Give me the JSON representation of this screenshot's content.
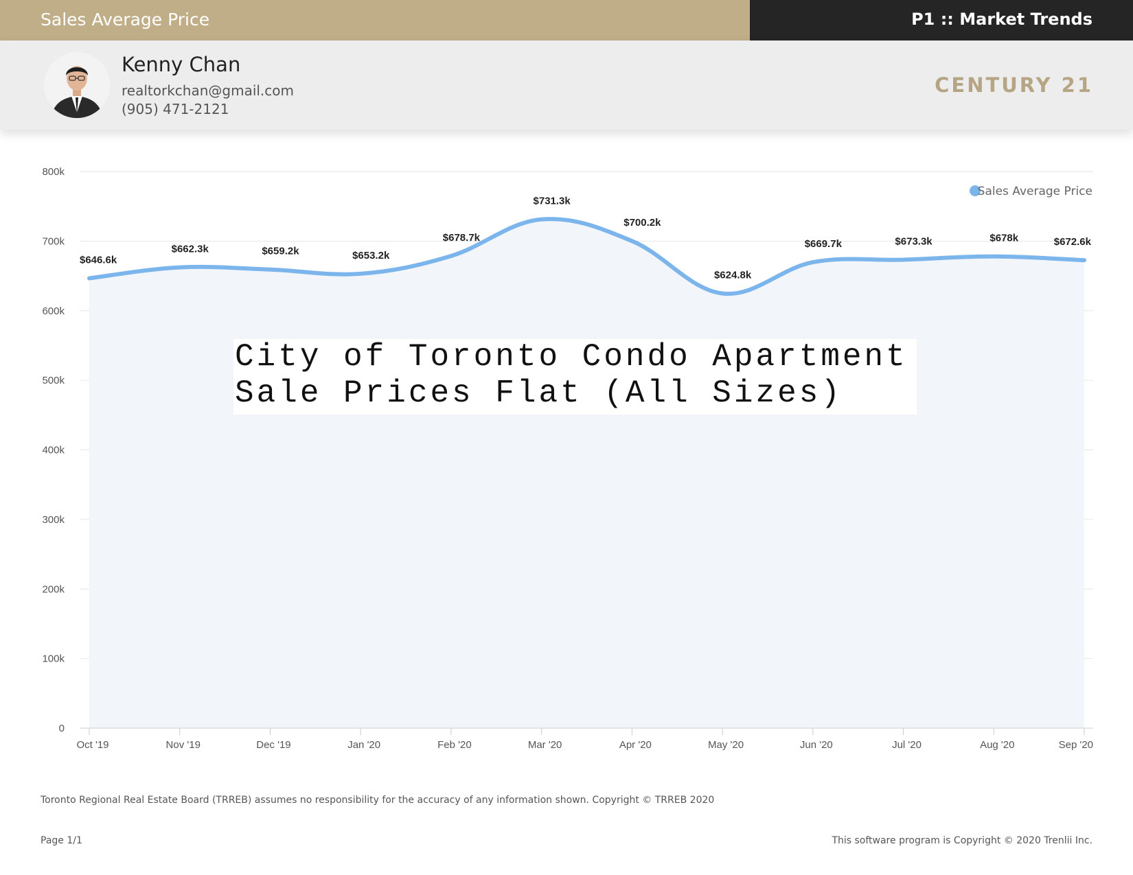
{
  "header": {
    "section_title": "Sales Average Price",
    "report_title": "P1 :: Market Trends"
  },
  "agent": {
    "name": "Kenny Chan",
    "email": "realtorkchan@gmail.com",
    "phone": "(905) 471-2121",
    "brand": "CENTURY 21"
  },
  "overlay_text": "City of Toronto Condo Apartment\nSale Prices Flat (All Sizes)",
  "chart_data": {
    "type": "area",
    "title": "",
    "xlabel": "",
    "ylabel": "",
    "ylim": [
      0,
      800000
    ],
    "y_ticks": [
      0,
      100000,
      200000,
      300000,
      400000,
      500000,
      600000,
      700000,
      800000
    ],
    "y_tick_labels": [
      "0",
      "100k",
      "200k",
      "300k",
      "400k",
      "500k",
      "600k",
      "700k",
      "800k"
    ],
    "categories": [
      "Oct '19",
      "Nov '19",
      "Dec '19",
      "Jan '20",
      "Feb '20",
      "Mar '20",
      "Apr '20",
      "May '20",
      "Jun '20",
      "Jul '20",
      "Aug '20",
      "Sep '20"
    ],
    "series": [
      {
        "name": "Sales Average Price",
        "color": "#7cb5ec",
        "values": [
          646600,
          662300,
          659200,
          653200,
          678700,
          731300,
          700200,
          624800,
          669700,
          673300,
          678000,
          672600
        ],
        "labels": [
          "$646.6k",
          "$662.3k",
          "$659.2k",
          "$653.2k",
          "$678.7k",
          "$731.3k",
          "$700.2k",
          "$624.8k",
          "$669.7k",
          "$673.3k",
          "$678k",
          "$672.6k"
        ]
      }
    ],
    "grid": true,
    "legend_position": "top-right"
  },
  "footer": {
    "disclaimer": "Toronto Regional Real Estate Board (TRREB) assumes no responsibility for the accuracy of any information shown. Copyright © TRREB 2020",
    "page": "Page 1/1",
    "software_copyright": "This software program is Copyright © 2020 Trenlii Inc."
  }
}
